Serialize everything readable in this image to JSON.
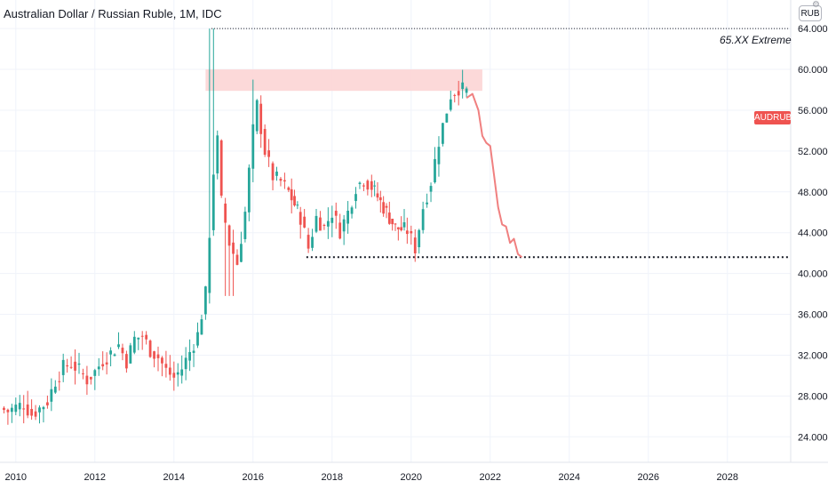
{
  "header": {
    "title": "Australian Dollar / Russian Ruble, 1M, IDC",
    "currency": "RUB",
    "settings_icon": "gear-icon"
  },
  "symbol_tag": "AUDRUB",
  "annotation": "65.XX Extreme",
  "colors": {
    "up": "#26a69a",
    "down": "#ef5350",
    "forecast": "#f08080",
    "zone": "#fcd5d5",
    "grid": "#f0f3fa",
    "axis_text": "#131722"
  },
  "chart_data": {
    "type": "candlestick",
    "title": "Australian Dollar / Russian Ruble, 1M, IDC",
    "x_ticks": [
      "2010",
      "2012",
      "2014",
      "2016",
      "2018",
      "2020",
      "2022",
      "2024",
      "2026",
      "2028"
    ],
    "y_ticks": [
      "24.000",
      "28.000",
      "32.000",
      "36.000",
      "40.000",
      "44.000",
      "48.000",
      "52.000",
      "56.000",
      "60.000",
      "64.000"
    ],
    "xlim": [
      2009.6,
      2029.6
    ],
    "ylim": [
      21.5,
      66.8
    ],
    "grid": true,
    "price_series": [
      [
        2009.6,
        26.8
      ],
      [
        2009.8,
        26.5
      ],
      [
        2010.0,
        26.9
      ],
      [
        2010.2,
        27.2
      ],
      [
        2010.4,
        26.2
      ],
      [
        2010.6,
        26.8
      ],
      [
        2010.8,
        27.5
      ],
      [
        2011.0,
        29.5
      ],
      [
        2011.2,
        30.8
      ],
      [
        2011.4,
        31.2
      ],
      [
        2011.6,
        30.5
      ],
      [
        2011.8,
        29.6
      ],
      [
        2012.0,
        30.4
      ],
      [
        2012.2,
        31.5
      ],
      [
        2012.4,
        32.2
      ],
      [
        2012.6,
        33.0
      ],
      [
        2012.8,
        31.4
      ],
      [
        2013.0,
        33.6
      ],
      [
        2013.2,
        33.9
      ],
      [
        2013.4,
        32.5
      ],
      [
        2013.6,
        31.8
      ],
      [
        2013.8,
        30.5
      ],
      [
        2014.0,
        29.8
      ],
      [
        2014.2,
        30.7
      ],
      [
        2014.4,
        32.3
      ],
      [
        2014.6,
        34.0
      ],
      [
        2014.8,
        38.0
      ],
      [
        2014.9,
        44.0
      ],
      [
        2015.0,
        50.0
      ],
      [
        2015.1,
        53.0
      ],
      [
        2015.2,
        47.0
      ],
      [
        2015.4,
        43.0
      ],
      [
        2015.6,
        41.0
      ],
      [
        2015.8,
        46.0
      ],
      [
        2016.0,
        54.0
      ],
      [
        2016.1,
        56.5
      ],
      [
        2016.3,
        52.0
      ],
      [
        2016.5,
        49.5
      ],
      [
        2016.7,
        49.0
      ],
      [
        2016.9,
        48.0
      ],
      [
        2017.2,
        45.5
      ],
      [
        2017.4,
        42.5
      ],
      [
        2017.6,
        45.5
      ],
      [
        2017.8,
        44.5
      ],
      [
        2018.0,
        46.0
      ],
      [
        2018.2,
        44.2
      ],
      [
        2018.4,
        46.0
      ],
      [
        2018.6,
        48.5
      ],
      [
        2018.8,
        49.2
      ],
      [
        2019.0,
        48.5
      ],
      [
        2019.3,
        46.5
      ],
      [
        2019.6,
        44.5
      ],
      [
        2019.9,
        44.2
      ],
      [
        2020.1,
        42.5
      ],
      [
        2020.3,
        46.5
      ],
      [
        2020.5,
        49.0
      ],
      [
        2020.7,
        53.0
      ],
      [
        2020.9,
        56.0
      ],
      [
        2021.0,
        57.5
      ],
      [
        2021.2,
        58.2
      ],
      [
        2021.4,
        57.8
      ]
    ],
    "forecast": {
      "x": [
        2021.4,
        2021.55,
        2021.7,
        2021.8,
        2021.9,
        2022.0,
        2022.1,
        2022.2,
        2022.3,
        2022.4,
        2022.5,
        2022.6,
        2022.7,
        2022.8
      ],
      "y": [
        57.2,
        57.6,
        56.0,
        53.5,
        52.8,
        52.5,
        49.5,
        46.5,
        44.8,
        44.6,
        43.0,
        43.4,
        41.9,
        41.6
      ]
    },
    "resistance_zone": {
      "x_start": 2014.8,
      "x_end": 2021.8,
      "y_low": 57.9,
      "y_high": 60.0
    },
    "extreme_line": {
      "x_start": 2014.95,
      "x_end": 2029.6,
      "y": 64.0
    },
    "support_line": {
      "x_start": 2017.35,
      "x_end": 2029.6,
      "y": 41.6
    },
    "last_price": 57.8
  }
}
